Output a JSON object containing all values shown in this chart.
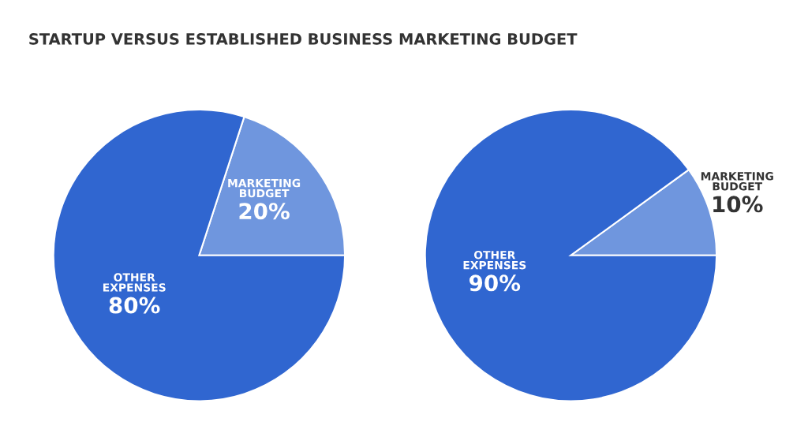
{
  "chart_data": [
    {
      "type": "pie",
      "title": "STARTUP VERSUS ESTABLISHED BUSINESS MARKETING BUDGET",
      "categories": [
        "MARKETING BUDGET",
        "OTHER EXPENSES"
      ],
      "values": [
        20,
        80
      ],
      "value_labels": [
        "20%",
        "80%"
      ],
      "colors": [
        "#6f96de",
        "#3066d0"
      ]
    },
    {
      "type": "pie",
      "categories": [
        "MARKETING BUDGET",
        "OTHER EXPENSES"
      ],
      "values": [
        10,
        90
      ],
      "value_labels": [
        "10%",
        "90%"
      ],
      "colors": [
        "#6f96de",
        "#3066d0"
      ]
    }
  ]
}
